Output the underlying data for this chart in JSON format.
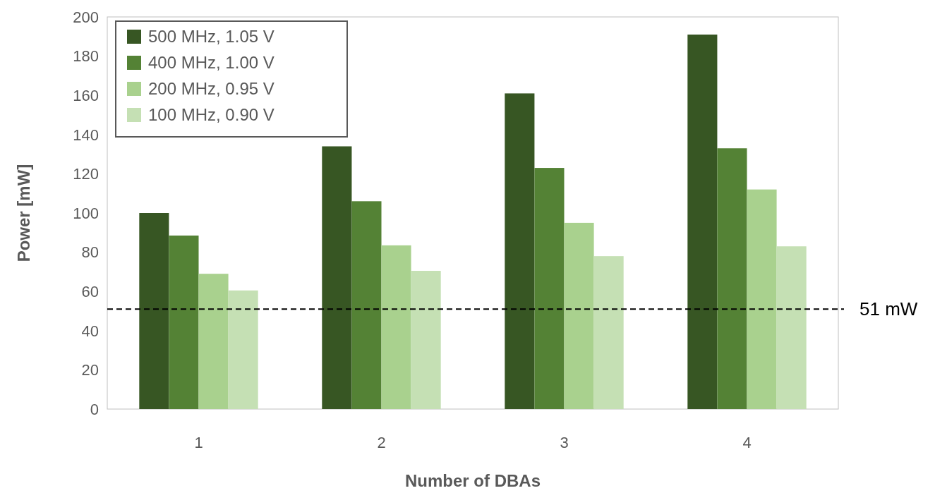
{
  "chart_data": {
    "type": "bar",
    "xlabel": "Number of DBAs",
    "ylabel": "Power [mW]",
    "categories": [
      "1",
      "2",
      "3",
      "4"
    ],
    "series": [
      {
        "name": "500 MHz, 1.05 V",
        "color": "#375623",
        "values": [
          100,
          134,
          161,
          191
        ]
      },
      {
        "name": "400 MHz, 1.00 V",
        "color": "#548235",
        "values": [
          88.5,
          106,
          123,
          133
        ]
      },
      {
        "name": "200 MHz, 0.95 V",
        "color": "#a9d18e",
        "values": [
          69,
          83.5,
          95,
          112
        ]
      },
      {
        "name": "100 MHz, 0.90 V",
        "color": "#c5e0b4",
        "values": [
          60.5,
          70.5,
          78,
          83
        ]
      }
    ],
    "ylim": [
      0,
      200
    ],
    "yticks": [
      0,
      20,
      40,
      60,
      80,
      100,
      120,
      140,
      160,
      180,
      200
    ],
    "ref_lines": [
      {
        "axis": "y",
        "value": 51,
        "label": "51 mW",
        "color": "#000000",
        "line_style": "dashed"
      }
    ],
    "grid": false,
    "legend": "top left"
  }
}
